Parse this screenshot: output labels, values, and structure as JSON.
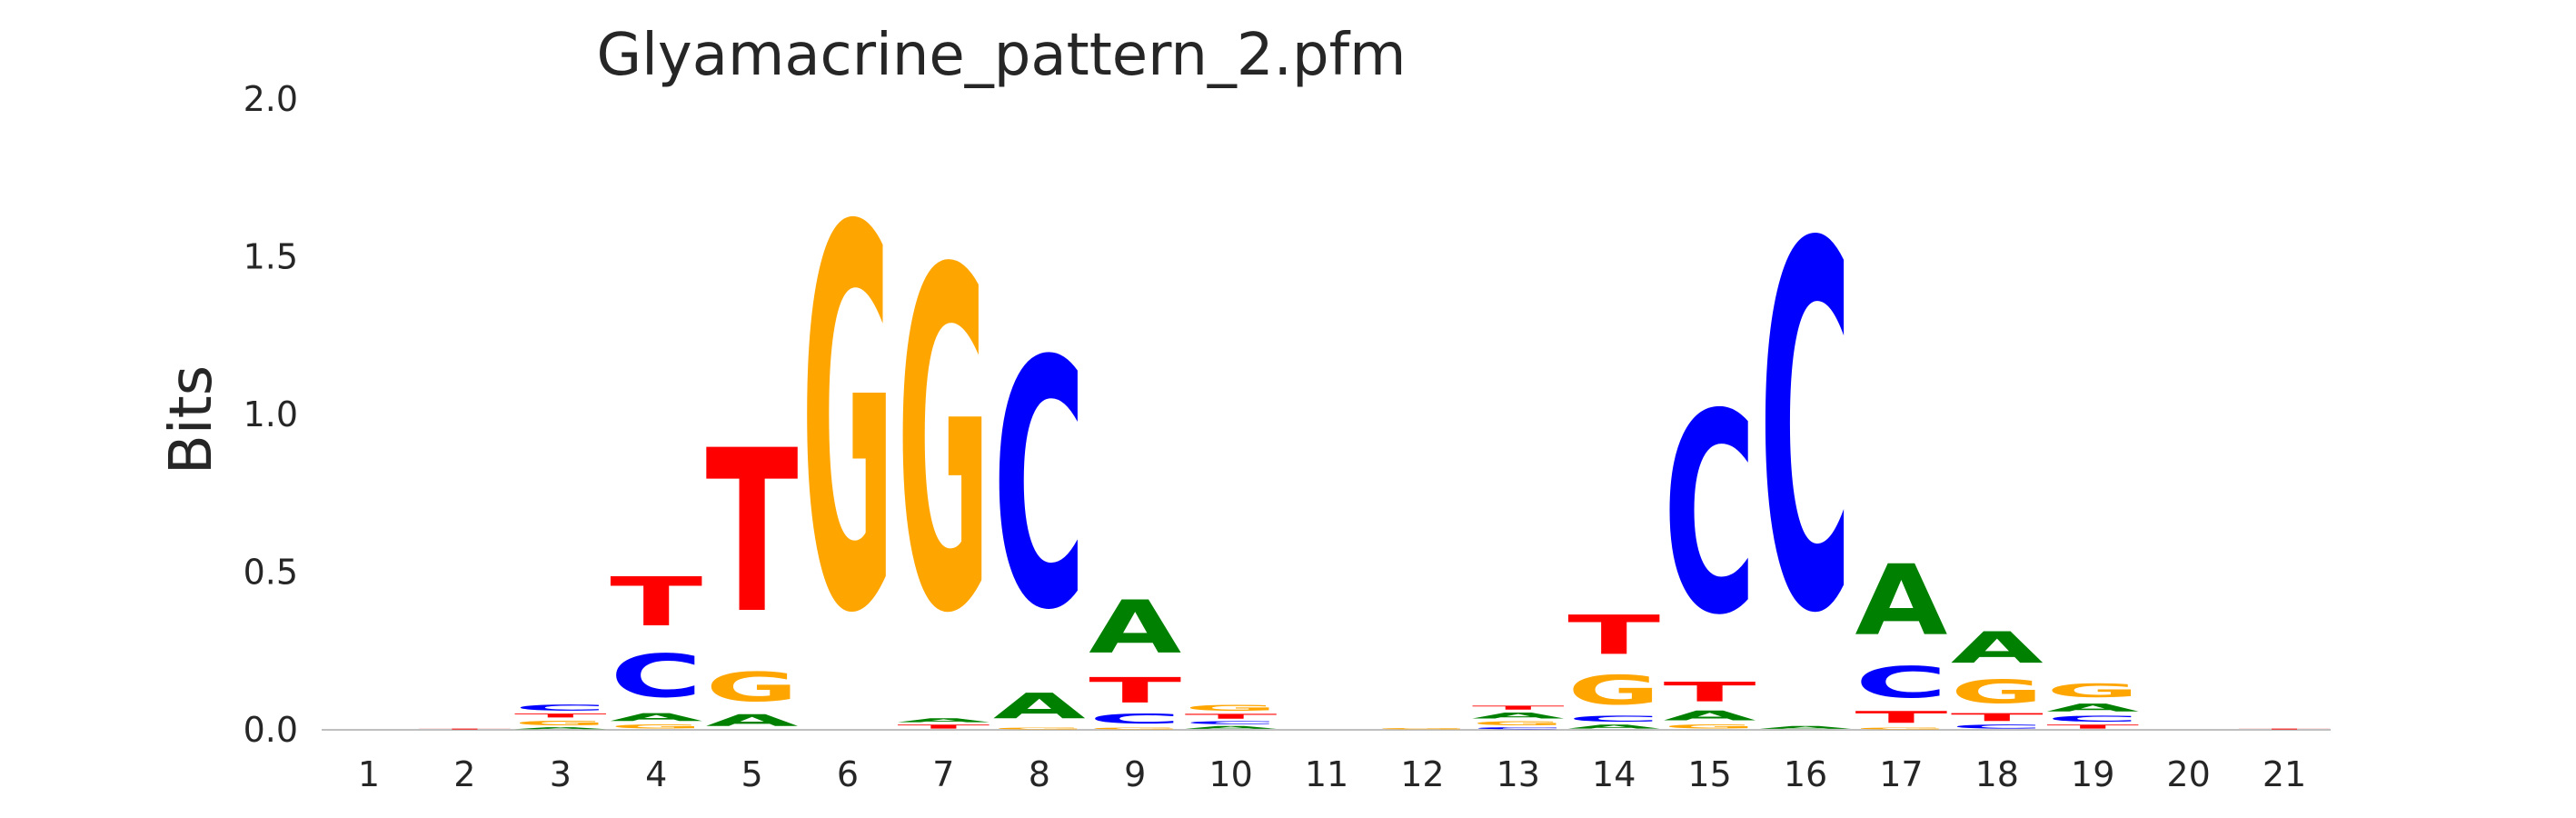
{
  "chart_data": {
    "type": "sequence-logo",
    "title": "Glyamacrine_pattern_2.pfm",
    "ylabel": "Bits",
    "xlabel": "",
    "ylim": [
      0,
      2.0
    ],
    "yticks": [
      "0.0",
      "0.5",
      "1.0",
      "1.5",
      "2.0"
    ],
    "positions": [
      "1",
      "2",
      "3",
      "4",
      "5",
      "6",
      "7",
      "8",
      "9",
      "10",
      "11",
      "12",
      "13",
      "14",
      "15",
      "16",
      "17",
      "18",
      "19",
      "20",
      "21"
    ],
    "colors": {
      "A": "#008000",
      "C": "#0000ff",
      "G": "#ffa500",
      "T": "#ff0000"
    },
    "grid": false,
    "legend": "none",
    "stacks": [
      [],
      [
        [
          "T",
          0.005
        ]
      ],
      [
        [
          "A",
          0.01
        ],
        [
          "G",
          0.025
        ],
        [
          "T",
          0.02
        ],
        [
          "C",
          0.03
        ]
      ],
      [
        [
          "G",
          0.02
        ],
        [
          "A",
          0.04
        ],
        [
          "C",
          0.22
        ],
        [
          "T",
          0.25
        ]
      ],
      [
        [
          "A",
          0.06
        ],
        [
          "G",
          0.15
        ],
        [
          "T",
          0.83
        ]
      ],
      [
        [
          "G",
          1.94
        ]
      ],
      [
        [
          "T",
          0.02
        ],
        [
          "A",
          0.02
        ],
        [
          "G",
          1.73
        ]
      ],
      [
        [
          "G",
          0.01
        ],
        [
          "A",
          0.13
        ],
        [
          "C",
          1.26
        ]
      ],
      [
        [
          "G",
          0.01
        ],
        [
          "C",
          0.05
        ],
        [
          "T",
          0.13
        ],
        [
          "A",
          0.27
        ]
      ],
      [
        [
          "A",
          0.015
        ],
        [
          "C",
          0.015
        ],
        [
          "T",
          0.025
        ],
        [
          "G",
          0.03
        ]
      ],
      [],
      [
        [
          "G",
          0.005
        ]
      ],
      [
        [
          "C",
          0.01
        ],
        [
          "G",
          0.02
        ],
        [
          "A",
          0.03
        ],
        [
          "T",
          0.02
        ]
      ],
      [
        [
          "A",
          0.02
        ],
        [
          "C",
          0.03
        ],
        [
          "G",
          0.15
        ],
        [
          "T",
          0.2
        ]
      ],
      [
        [
          "G",
          0.02
        ],
        [
          "A",
          0.05
        ],
        [
          "T",
          0.1
        ],
        [
          "C",
          1.02
        ]
      ],
      [
        [
          "A",
          0.015
        ],
        [
          "C",
          1.86
        ]
      ],
      [
        [
          "G",
          0.01
        ],
        [
          "T",
          0.06
        ],
        [
          "C",
          0.16
        ],
        [
          "A",
          0.36
        ]
      ],
      [
        [
          "C",
          0.02
        ],
        [
          "T",
          0.04
        ],
        [
          "G",
          0.12
        ],
        [
          "A",
          0.16
        ]
      ],
      [
        [
          "T",
          0.02
        ],
        [
          "C",
          0.03
        ],
        [
          "A",
          0.04
        ],
        [
          "G",
          0.07
        ]
      ],
      [],
      [
        [
          "T",
          0.005
        ]
      ]
    ]
  }
}
